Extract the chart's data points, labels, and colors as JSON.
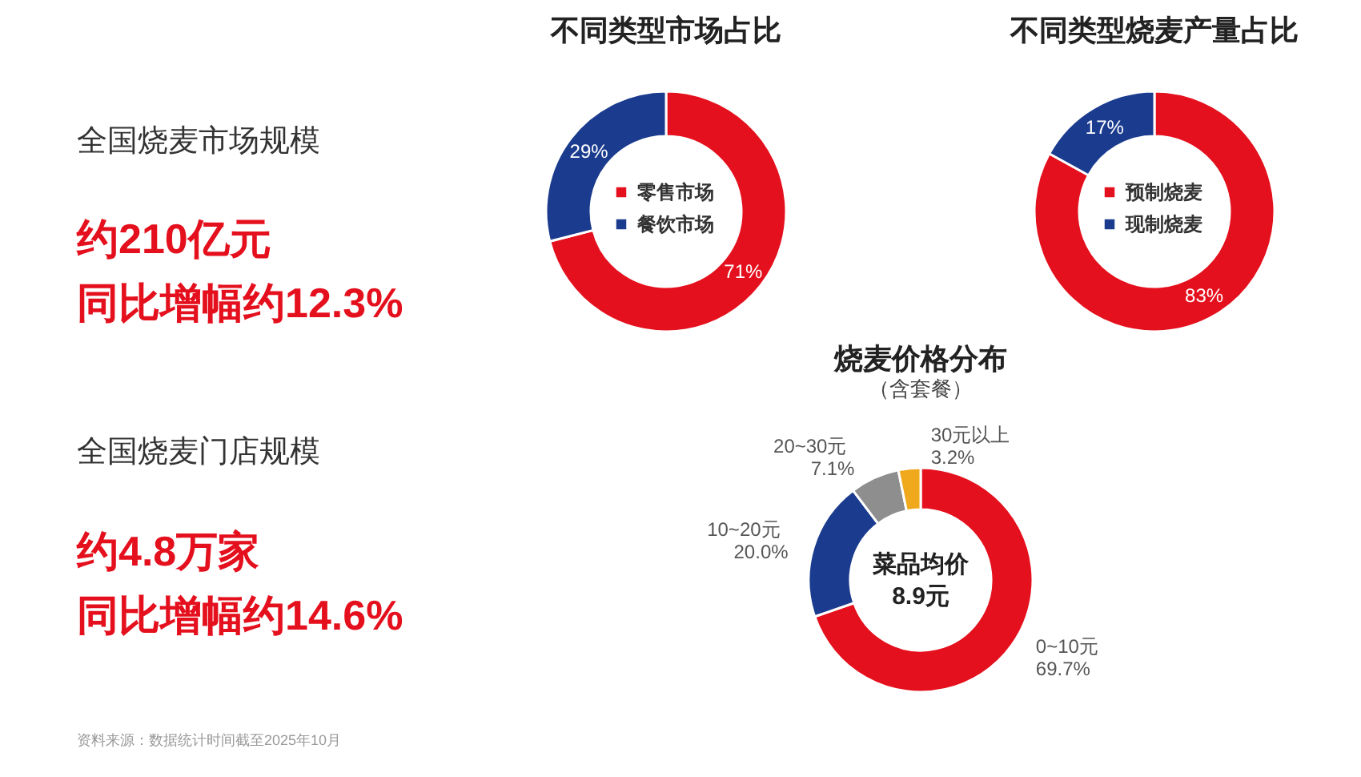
{
  "chart_data": [
    {
      "type": "other",
      "annotations": [
        "全国烧麦市场规模",
        "约210亿元",
        "同比增幅约12.3%",
        "全国烧麦门店规模",
        "约4.8万家",
        "同比增幅约14.6%",
        "资料来源：数据统计时间截至2025年10月"
      ]
    },
    {
      "type": "donut",
      "title": "不同类型市场占比",
      "categories": [
        "零售市场",
        "餐饮市场"
      ],
      "values": [
        71,
        29
      ],
      "colors": [
        "#e5101d",
        "#1b3b8e"
      ],
      "value_labels": [
        "71%",
        "29%"
      ],
      "legend": "center"
    },
    {
      "type": "donut",
      "title": "不同类型烧麦产量占比",
      "categories": [
        "预制烧麦",
        "现制烧麦"
      ],
      "values": [
        83,
        17
      ],
      "colors": [
        "#e5101d",
        "#1b3b8e"
      ],
      "value_labels": [
        "83%",
        "17%"
      ],
      "legend": "center"
    },
    {
      "type": "donut",
      "title": "烧麦价格分布",
      "subtitle": "（含套餐）",
      "categories": [
        "0~10元",
        "10~20元",
        "20~30元",
        "30元以上"
      ],
      "values": [
        69.7,
        20.0,
        7.1,
        3.2
      ],
      "colors": [
        "#e5101d",
        "#1b3b8e",
        "#8e8e8e",
        "#f0a81c"
      ],
      "value_labels": [
        "69.7%",
        "20.0%",
        "7.1%",
        "3.2%"
      ],
      "annotations": [
        "菜品均价",
        "8.9元"
      ]
    }
  ]
}
